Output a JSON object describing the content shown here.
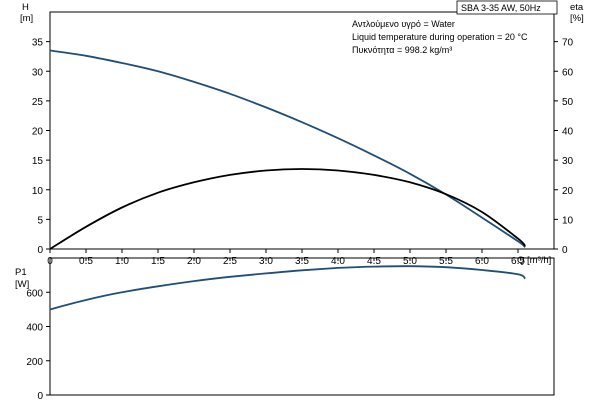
{
  "title_box": "SBA 3-35 AW, 50Hz",
  "info_lines": [
    "Αντλούμενο υγρό = Water",
    "Liquid temperature during operation = 20 °C",
    "Πυκνότητα = 998.2 kg/m³"
  ],
  "colors": {
    "head": "#1f4e79",
    "eta": "#000000",
    "power": "#1f4e79",
    "axis": "#000000"
  },
  "chart_data": [
    {
      "type": "line",
      "xlabel": "Q [m³/h]",
      "xlim": [
        0,
        7
      ],
      "x_ticks": [
        0,
        0.5,
        1.0,
        1.5,
        2.0,
        2.5,
        3.0,
        3.5,
        4.0,
        4.5,
        5.0,
        5.5,
        6.0,
        6.5
      ],
      "x_tick_labels": [
        "0",
        "0.5",
        "1.0",
        "1.5",
        "2.0",
        "2.5",
        "3.0",
        "3.5",
        "4.0",
        "4.5",
        "5.0",
        "5.5",
        "6.0",
        "6.5"
      ],
      "ylabel_left": "H",
      "ylabel_left_unit": "[m]",
      "ylim_left": [
        0,
        40
      ],
      "y_ticks_left": [
        0,
        5,
        10,
        15,
        20,
        25,
        30,
        35
      ],
      "ylabel_right": "eta",
      "ylabel_right_unit": "[%]",
      "ylim_right": [
        0,
        80
      ],
      "y_ticks_right": [
        0,
        10,
        20,
        30,
        40,
        50,
        60,
        70
      ],
      "series": [
        {
          "axis": "left",
          "x": [
            0,
            0.5,
            1.0,
            1.5,
            2.0,
            2.5,
            3.0,
            3.5,
            4.0,
            4.5,
            5.0,
            5.5,
            6.0,
            6.5,
            6.6
          ],
          "y": [
            33.5,
            32.6,
            31.4,
            30.0,
            28.2,
            26.2,
            23.9,
            21.4,
            18.7,
            15.8,
            12.7,
            9.2,
            5.3,
            1.3,
            0.3
          ]
        },
        {
          "axis": "right",
          "x": [
            0,
            0.5,
            1.0,
            1.5,
            2.0,
            2.5,
            3.0,
            3.5,
            4.0,
            4.5,
            5.0,
            5.5,
            6.0,
            6.5,
            6.6
          ],
          "y": [
            0,
            7.5,
            14,
            19,
            22.5,
            25,
            26.5,
            27,
            26.5,
            25,
            22.5,
            18.5,
            12.5,
            3.5,
            1
          ]
        }
      ]
    },
    {
      "type": "line",
      "ylabel": "P1",
      "ylabel_unit": "[W]",
      "xlim": [
        0,
        7
      ],
      "ylim": [
        0,
        800
      ],
      "y_ticks": [
        0,
        200,
        400,
        600
      ],
      "series": [
        {
          "x": [
            0,
            0.5,
            1.0,
            1.5,
            2.0,
            2.5,
            3.0,
            3.5,
            4.0,
            4.5,
            5.0,
            5.5,
            6.0,
            6.5,
            6.6
          ],
          "y": [
            500,
            555,
            600,
            635,
            665,
            690,
            710,
            728,
            742,
            750,
            752,
            746,
            730,
            705,
            680
          ]
        }
      ]
    }
  ]
}
